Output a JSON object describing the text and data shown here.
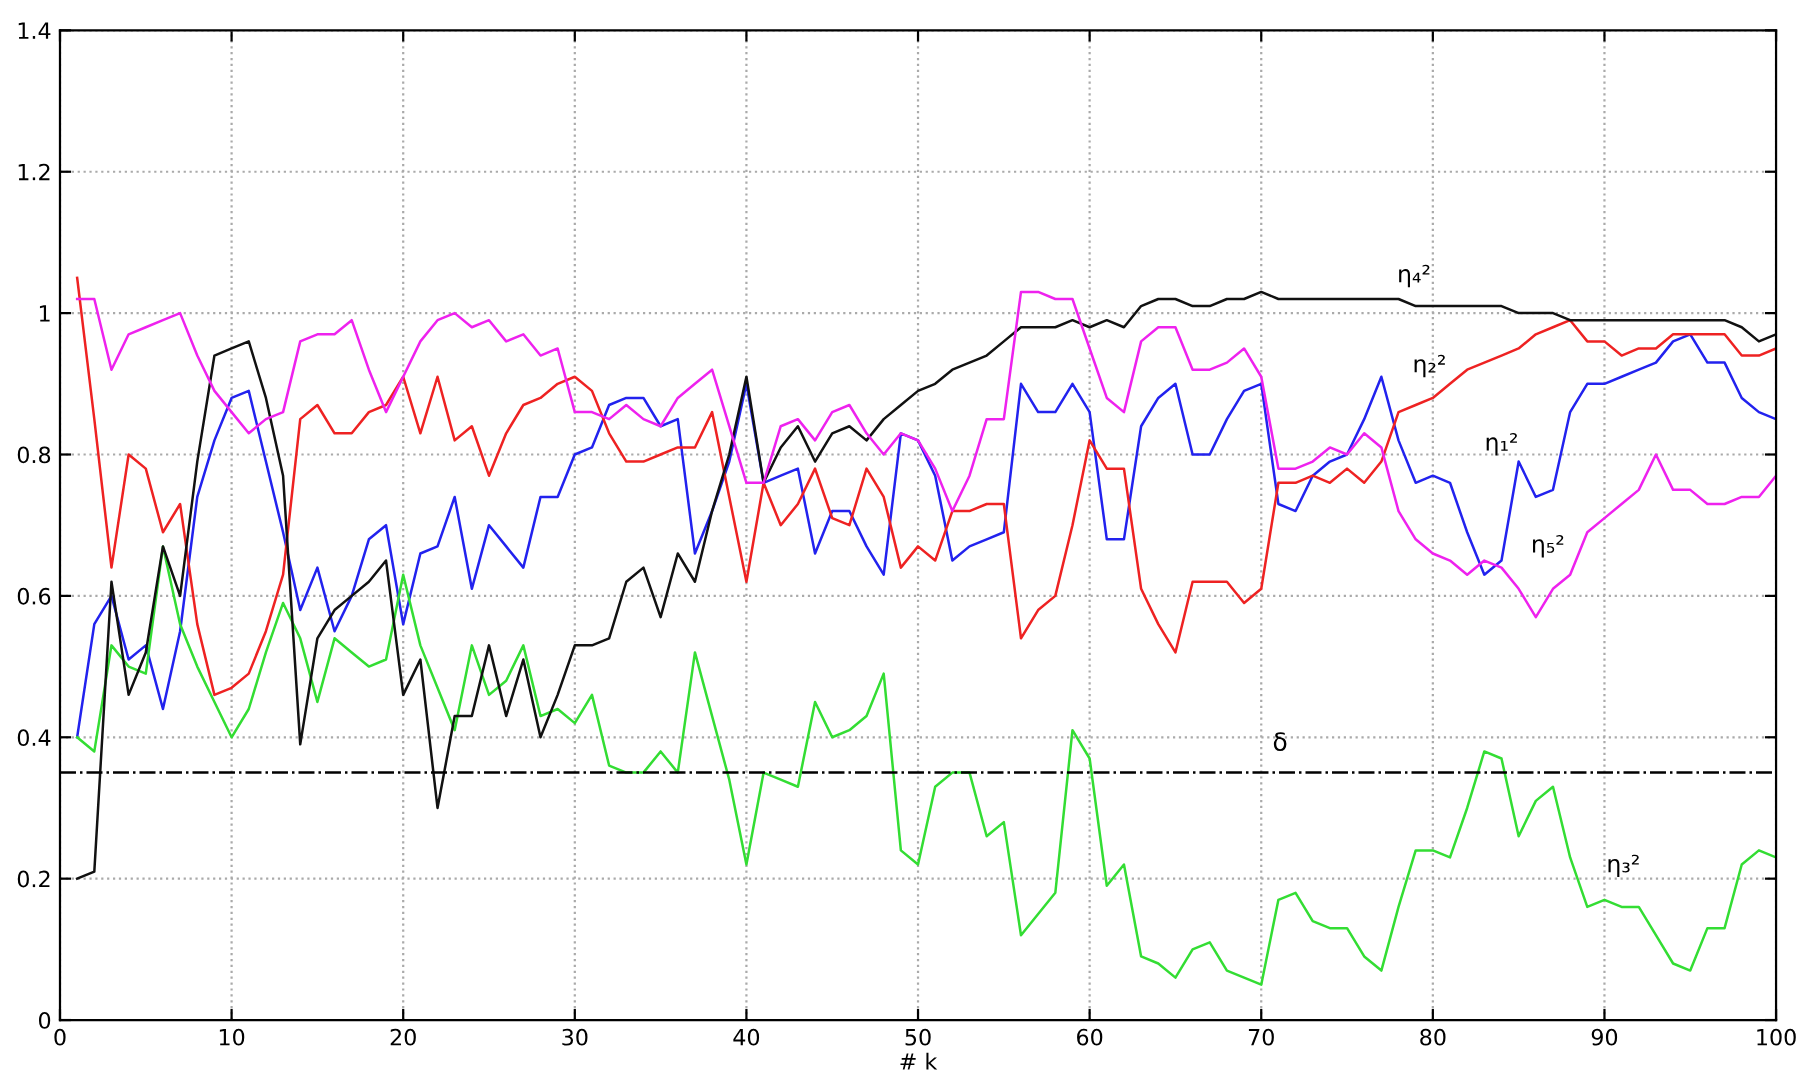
{
  "chart_data": {
    "type": "line",
    "xlabel": "# k",
    "xlim": [
      0,
      100
    ],
    "xticks": [
      0,
      10,
      20,
      30,
      40,
      50,
      60,
      70,
      80,
      90,
      100
    ],
    "ylim": [
      0,
      1.4
    ],
    "yticks": [
      0,
      0.2,
      0.4,
      0.6,
      0.8,
      1,
      1.2,
      1.4
    ],
    "grid": true,
    "x": [
      1,
      2,
      3,
      4,
      5,
      6,
      7,
      8,
      9,
      10,
      11,
      12,
      13,
      14,
      15,
      16,
      17,
      18,
      19,
      20,
      21,
      22,
      23,
      24,
      25,
      26,
      27,
      28,
      29,
      30,
      31,
      32,
      33,
      34,
      35,
      36,
      37,
      38,
      39,
      40,
      41,
      42,
      43,
      44,
      45,
      46,
      47,
      48,
      49,
      50,
      51,
      52,
      53,
      54,
      55,
      56,
      57,
      58,
      59,
      60,
      61,
      62,
      63,
      64,
      65,
      66,
      67,
      68,
      69,
      70,
      71,
      72,
      73,
      74,
      75,
      76,
      77,
      78,
      79,
      80,
      81,
      82,
      83,
      84,
      85,
      86,
      87,
      88,
      89,
      90,
      91,
      92,
      93,
      94,
      95,
      96,
      97,
      98,
      99,
      100
    ],
    "series": [
      {
        "name": "η₁²",
        "color": "#2222ee",
        "values": [
          0.4,
          0.56,
          0.6,
          0.51,
          0.53,
          0.44,
          0.55,
          0.74,
          0.82,
          0.88,
          0.89,
          0.79,
          0.69,
          0.58,
          0.64,
          0.55,
          0.6,
          0.68,
          0.7,
          0.56,
          0.66,
          0.67,
          0.74,
          0.61,
          0.7,
          0.67,
          0.64,
          0.74,
          0.74,
          0.8,
          0.81,
          0.87,
          0.88,
          0.88,
          0.84,
          0.85,
          0.66,
          0.72,
          0.79,
          0.9,
          0.76,
          0.77,
          0.78,
          0.66,
          0.72,
          0.72,
          0.67,
          0.63,
          0.83,
          0.82,
          0.77,
          0.65,
          0.67,
          0.68,
          0.69,
          0.9,
          0.86,
          0.86,
          0.9,
          0.86,
          0.68,
          0.68,
          0.84,
          0.88,
          0.9,
          0.8,
          0.8,
          0.85,
          0.89,
          0.9,
          0.73,
          0.72,
          0.77,
          0.79,
          0.8,
          0.85,
          0.91,
          0.82,
          0.76,
          0.77,
          0.76,
          0.69,
          0.63,
          0.65,
          0.79,
          0.74,
          0.75,
          0.86,
          0.9,
          0.9,
          0.91,
          0.92,
          0.93,
          0.96,
          0.97,
          0.93,
          0.93,
          0.88,
          0.86,
          0.85
        ]
      },
      {
        "name": "η₂²",
        "color": "#ee2222",
        "values": [
          1.05,
          0.85,
          0.64,
          0.8,
          0.78,
          0.69,
          0.73,
          0.56,
          0.46,
          0.47,
          0.49,
          0.55,
          0.63,
          0.85,
          0.87,
          0.83,
          0.83,
          0.86,
          0.87,
          0.91,
          0.83,
          0.91,
          0.82,
          0.84,
          0.77,
          0.83,
          0.87,
          0.88,
          0.9,
          0.91,
          0.89,
          0.83,
          0.79,
          0.79,
          0.8,
          0.81,
          0.81,
          0.86,
          0.74,
          0.62,
          0.76,
          0.7,
          0.73,
          0.78,
          0.71,
          0.7,
          0.78,
          0.74,
          0.64,
          0.67,
          0.65,
          0.72,
          0.72,
          0.73,
          0.73,
          0.54,
          0.58,
          0.6,
          0.7,
          0.82,
          0.78,
          0.78,
          0.61,
          0.56,
          0.52,
          0.62,
          0.62,
          0.62,
          0.59,
          0.61,
          0.76,
          0.76,
          0.77,
          0.76,
          0.78,
          0.76,
          0.79,
          0.86,
          0.87,
          0.88,
          0.9,
          0.92,
          0.93,
          0.94,
          0.95,
          0.97,
          0.98,
          0.99,
          0.96,
          0.96,
          0.94,
          0.95,
          0.95,
          0.97,
          0.97,
          0.97,
          0.97,
          0.94,
          0.94,
          0.95
        ]
      },
      {
        "name": "η₃²",
        "color": "#33dd33",
        "values": [
          0.4,
          0.38,
          0.53,
          0.5,
          0.49,
          0.67,
          0.56,
          0.5,
          0.45,
          0.4,
          0.44,
          0.52,
          0.59,
          0.54,
          0.45,
          0.54,
          0.52,
          0.5,
          0.51,
          0.63,
          0.53,
          0.47,
          0.41,
          0.53,
          0.46,
          0.48,
          0.53,
          0.43,
          0.44,
          0.42,
          0.46,
          0.36,
          0.35,
          0.35,
          0.38,
          0.35,
          0.52,
          0.43,
          0.34,
          0.22,
          0.35,
          0.34,
          0.33,
          0.45,
          0.4,
          0.41,
          0.43,
          0.49,
          0.24,
          0.22,
          0.33,
          0.35,
          0.35,
          0.26,
          0.28,
          0.12,
          0.15,
          0.18,
          0.41,
          0.37,
          0.19,
          0.22,
          0.09,
          0.08,
          0.06,
          0.1,
          0.11,
          0.07,
          0.06,
          0.05,
          0.17,
          0.18,
          0.14,
          0.13,
          0.13,
          0.09,
          0.07,
          0.16,
          0.24,
          0.24,
          0.23,
          0.3,
          0.38,
          0.37,
          0.26,
          0.31,
          0.33,
          0.23,
          0.16,
          0.17,
          0.16,
          0.16,
          0.12,
          0.08,
          0.07,
          0.13,
          0.13,
          0.22,
          0.24,
          0.23
        ]
      },
      {
        "name": "η₄²",
        "color": "#111111",
        "values": [
          0.2,
          0.21,
          0.62,
          0.46,
          0.52,
          0.67,
          0.6,
          0.79,
          0.94,
          0.95,
          0.96,
          0.88,
          0.77,
          0.39,
          0.54,
          0.58,
          0.6,
          0.62,
          0.65,
          0.46,
          0.51,
          0.3,
          0.43,
          0.43,
          0.53,
          0.43,
          0.51,
          0.4,
          0.46,
          0.53,
          0.53,
          0.54,
          0.62,
          0.64,
          0.57,
          0.66,
          0.62,
          0.72,
          0.8,
          0.91,
          0.76,
          0.81,
          0.84,
          0.79,
          0.83,
          0.84,
          0.82,
          0.85,
          0.87,
          0.89,
          0.9,
          0.92,
          0.93,
          0.94,
          0.96,
          0.98,
          0.98,
          0.98,
          0.99,
          0.98,
          0.99,
          0.98,
          1.01,
          1.02,
          1.02,
          1.01,
          1.01,
          1.02,
          1.02,
          1.03,
          1.02,
          1.02,
          1.02,
          1.02,
          1.02,
          1.02,
          1.02,
          1.02,
          1.01,
          1.01,
          1.01,
          1.01,
          1.01,
          1.01,
          1.0,
          1.0,
          1.0,
          0.99,
          0.99,
          0.99,
          0.99,
          0.99,
          0.99,
          0.99,
          0.99,
          0.99,
          0.99,
          0.98,
          0.96,
          0.97
        ]
      },
      {
        "name": "η₅²",
        "color": "#ee22ee",
        "values": [
          1.02,
          1.02,
          0.92,
          0.97,
          0.98,
          0.99,
          1.0,
          0.94,
          0.89,
          0.86,
          0.83,
          0.85,
          0.86,
          0.96,
          0.97,
          0.97,
          0.99,
          0.92,
          0.86,
          0.91,
          0.96,
          0.99,
          1.0,
          0.98,
          0.99,
          0.96,
          0.97,
          0.94,
          0.95,
          0.86,
          0.86,
          0.85,
          0.87,
          0.85,
          0.84,
          0.88,
          0.9,
          0.92,
          0.84,
          0.76,
          0.76,
          0.84,
          0.85,
          0.82,
          0.86,
          0.87,
          0.83,
          0.8,
          0.83,
          0.82,
          0.78,
          0.72,
          0.77,
          0.85,
          0.85,
          1.03,
          1.03,
          1.02,
          1.02,
          0.95,
          0.88,
          0.86,
          0.96,
          0.98,
          0.98,
          0.92,
          0.92,
          0.93,
          0.95,
          0.91,
          0.78,
          0.78,
          0.79,
          0.81,
          0.8,
          0.83,
          0.81,
          0.72,
          0.68,
          0.66,
          0.65,
          0.63,
          0.65,
          0.64,
          0.61,
          0.57,
          0.61,
          0.63,
          0.69,
          0.71,
          0.73,
          0.75,
          0.8,
          0.75,
          0.75,
          0.73,
          0.73,
          0.74,
          0.74,
          0.77
        ]
      }
    ],
    "ref_lines": [
      {
        "axis": "y",
        "value": 0.35,
        "label": "δ",
        "color": "#000000",
        "line_style": "dashdot"
      }
    ]
  }
}
